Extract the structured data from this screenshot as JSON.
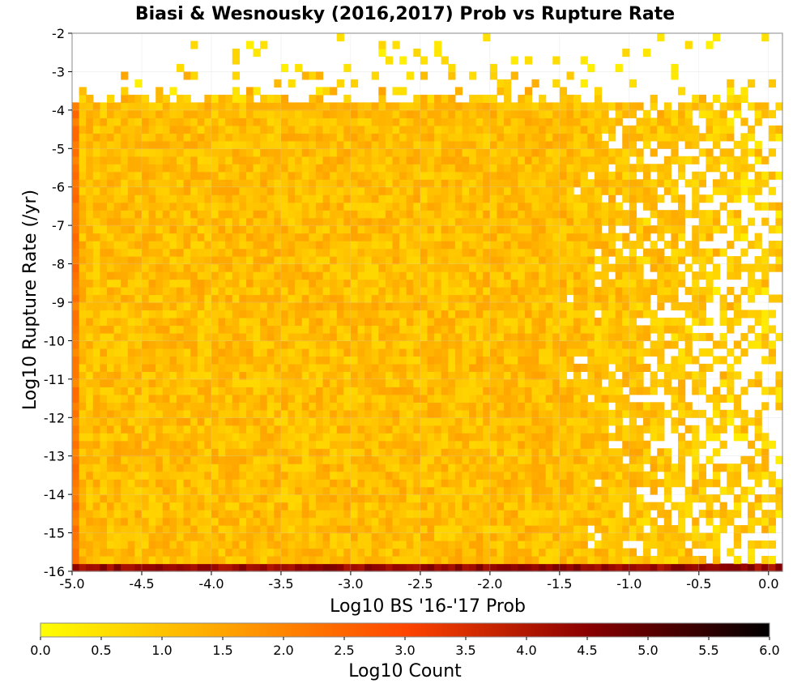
{
  "chart_data": {
    "type": "heatmap",
    "title": "Biasi & Wesnousky (2016,2017) Prob vs Rupture Rate",
    "xlabel": "Log10 BS '16-'17 Prob",
    "ylabel": "Log10 Rupture Rate (/yr)",
    "xlim": [
      -5.0,
      0.1
    ],
    "ylim": [
      -16,
      -2
    ],
    "x_ticks": [
      "-5.0",
      "-4.5",
      "-4.0",
      "-3.5",
      "-3.0",
      "-2.5",
      "-2.0",
      "-1.5",
      "-1.0",
      "-0.5",
      "0.0"
    ],
    "y_ticks": [
      "-2",
      "-3",
      "-4",
      "-5",
      "-6",
      "-7",
      "-8",
      "-9",
      "-10",
      "-11",
      "-12",
      "-13",
      "-14",
      "-15",
      "-16"
    ],
    "x_bin_width": 0.1,
    "y_bin_width": 0.2,
    "grid": true,
    "colorbar": {
      "label": "Log10 Count",
      "range": [
        0.0,
        6.0
      ],
      "ticks": [
        "0.0",
        "0.5",
        "1.0",
        "1.5",
        "2.0",
        "2.5",
        "3.0",
        "3.5",
        "4.0",
        "4.5",
        "5.0",
        "5.5",
        "6.0"
      ],
      "colors": [
        "#ffff00",
        "#ffa500",
        "#ff4500",
        "#8b0000",
        "#000000"
      ],
      "placement": "bottom"
    },
    "pattern": {
      "bottom_row_value": 4.2,
      "left_column_value": 2.2,
      "interior_mean": 1.1,
      "interior_range": [
        0.3,
        1.8
      ],
      "upper_edge_y": -4.0,
      "sparse_above_x": -1.5
    }
  }
}
